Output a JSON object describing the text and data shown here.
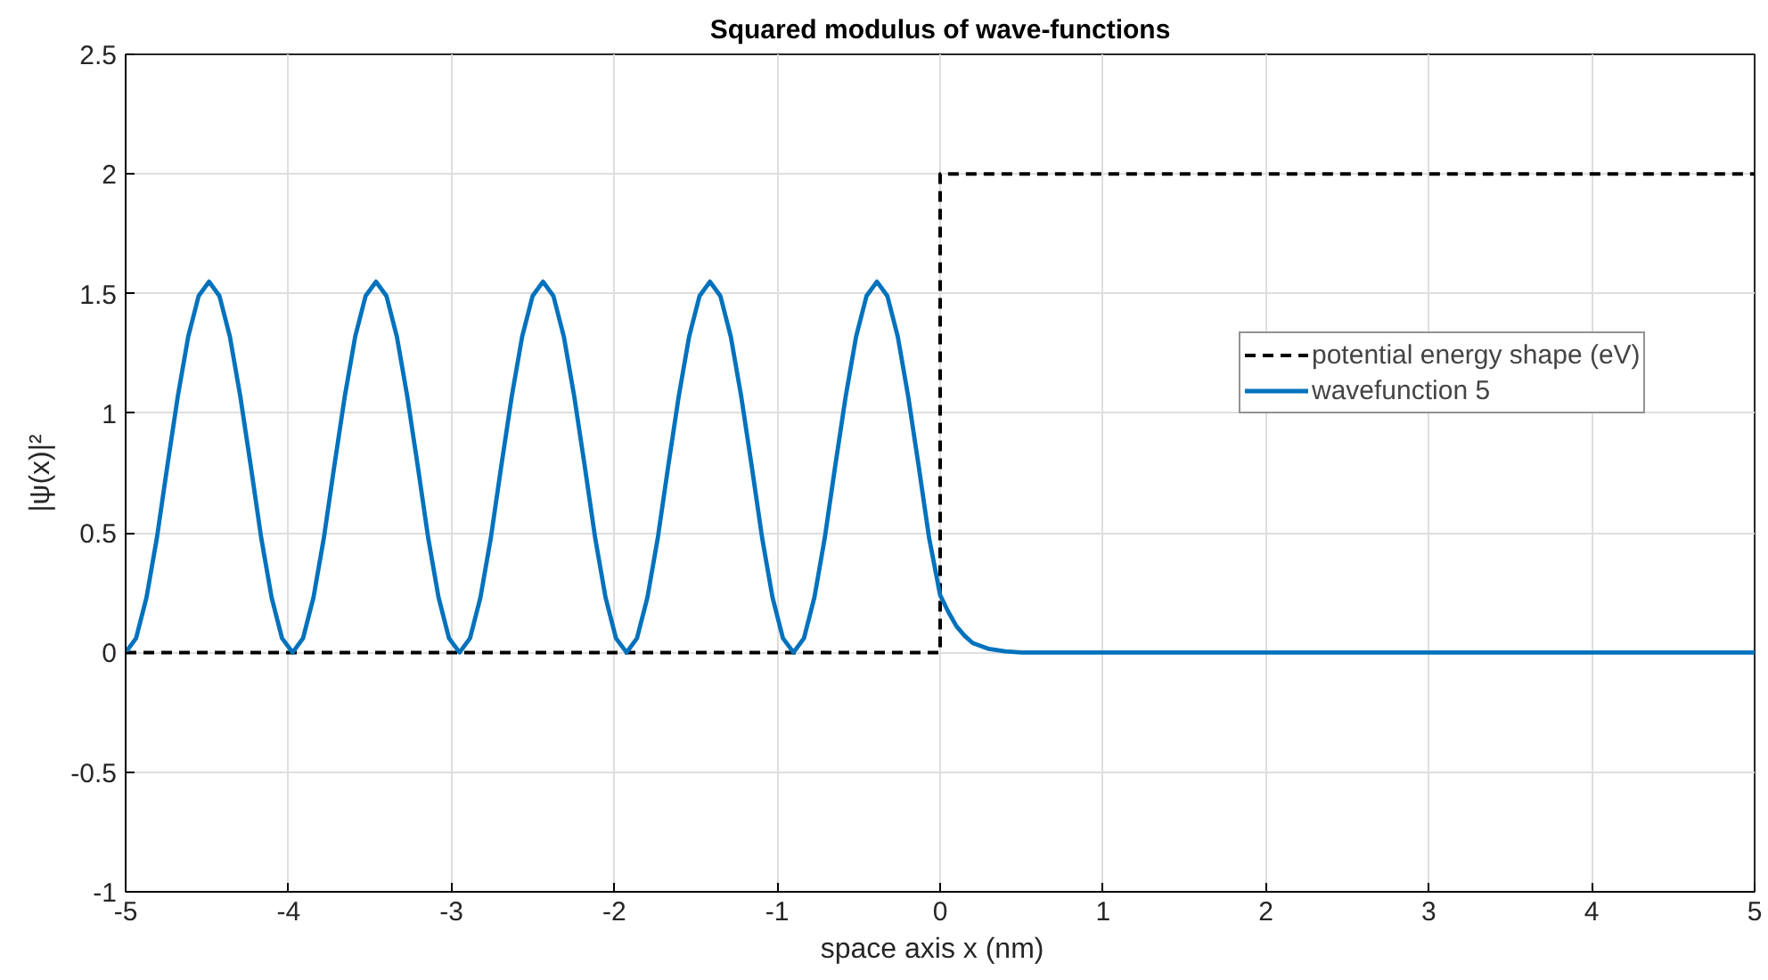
{
  "chart_data": {
    "type": "line",
    "title": "Squared modulus of wave-functions",
    "xlabel": "space axis  x  (nm)",
    "ylabel": "|ψ(x)|²",
    "xlim": [
      -5,
      5
    ],
    "ylim": [
      -1,
      2.5
    ],
    "xticks": [
      -5,
      -4,
      -3,
      -2,
      -1,
      0,
      1,
      2,
      3,
      4,
      5
    ],
    "yticks": [
      -1,
      -0.5,
      0,
      0.5,
      1,
      1.5,
      2,
      2.5
    ],
    "grid": true,
    "legend": "top right",
    "series": [
      {
        "name": "potential energy shape (eV)",
        "color": "#000000",
        "line_style": "dashed",
        "x": [
          -5,
          0,
          0,
          5
        ],
        "values": [
          0,
          0,
          2,
          2
        ]
      },
      {
        "name": "wavefunction 5",
        "color": "#0072bd",
        "line_style": "solid",
        "x": [
          -5,
          -4.936,
          -4.872,
          -4.808,
          -4.744,
          -4.68,
          -4.616,
          -4.552,
          -4.488,
          -4.424,
          -4.36,
          -4.296,
          -4.232,
          -4.168,
          -4.104,
          -4.04,
          -3.975,
          -3.911,
          -3.847,
          -3.783,
          -3.719,
          -3.655,
          -3.591,
          -3.527,
          -3.463,
          -3.399,
          -3.335,
          -3.271,
          -3.207,
          -3.143,
          -3.079,
          -3.015,
          -2.95,
          -2.886,
          -2.822,
          -2.758,
          -2.694,
          -2.63,
          -2.566,
          -2.502,
          -2.438,
          -2.374,
          -2.31,
          -2.246,
          -2.182,
          -2.118,
          -2.054,
          -1.99,
          -1.925,
          -1.861,
          -1.797,
          -1.733,
          -1.669,
          -1.605,
          -1.541,
          -1.477,
          -1.413,
          -1.349,
          -1.285,
          -1.221,
          -1.157,
          -1.093,
          -1.029,
          -0.965,
          -0.9,
          -0.836,
          -0.772,
          -0.708,
          -0.644,
          -0.58,
          -0.516,
          -0.452,
          -0.388,
          -0.324,
          -0.26,
          -0.196,
          -0.132,
          -0.068,
          0,
          0.05,
          0.1,
          0.15,
          0.2,
          0.3,
          0.4,
          0.5,
          5
        ],
        "values": [
          0,
          0.06,
          0.23,
          0.48,
          0.78,
          1.07,
          1.32,
          1.49,
          1.55,
          1.49,
          1.32,
          1.07,
          0.78,
          0.48,
          0.23,
          0.06,
          0,
          0.06,
          0.23,
          0.48,
          0.78,
          1.07,
          1.32,
          1.49,
          1.55,
          1.49,
          1.32,
          1.07,
          0.78,
          0.48,
          0.23,
          0.06,
          0,
          0.06,
          0.23,
          0.48,
          0.78,
          1.07,
          1.32,
          1.49,
          1.55,
          1.49,
          1.32,
          1.07,
          0.78,
          0.48,
          0.23,
          0.06,
          0,
          0.06,
          0.23,
          0.48,
          0.78,
          1.07,
          1.32,
          1.49,
          1.55,
          1.49,
          1.32,
          1.07,
          0.78,
          0.48,
          0.23,
          0.06,
          0,
          0.06,
          0.23,
          0.48,
          0.78,
          1.07,
          1.32,
          1.49,
          1.55,
          1.49,
          1.32,
          1.07,
          0.78,
          0.48,
          0.24,
          0.17,
          0.11,
          0.07,
          0.04,
          0.015,
          0.005,
          0,
          0
        ]
      }
    ]
  }
}
